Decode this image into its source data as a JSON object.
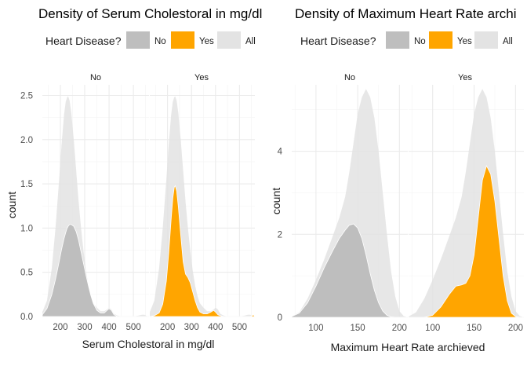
{
  "colors": {
    "No": "#bebebe",
    "Yes": "#ffa500",
    "All": "#e3e3e3"
  },
  "chart_data": [
    {
      "type": "area",
      "title": "Density of Serum Cholestoral in mg/dl",
      "xlabel": "Serum Cholestoral in mg/dl",
      "ylabel": "count",
      "legend": {
        "title": "Heart Disease?",
        "entries": [
          "No",
          "Yes",
          "All"
        ],
        "position": "top"
      },
      "panels": [
        "No",
        "Yes"
      ],
      "xlim": [
        126,
        564
      ],
      "ylim": [
        0,
        2.62
      ],
      "xticks": [
        200,
        300,
        400,
        500
      ],
      "yticks": [
        0.0,
        0.5,
        1.0,
        1.5,
        2.0,
        2.5
      ],
      "ytick_labels": [
        "0.0",
        "0.5",
        "1.0",
        "1.5",
        "2.0",
        "2.5"
      ],
      "grid": true,
      "x": [
        126,
        145,
        165,
        180,
        195,
        205,
        215,
        222,
        228,
        232,
        238,
        245,
        255,
        265,
        275,
        285,
        295,
        305,
        315,
        325,
        335,
        350,
        365,
        380,
        392,
        400,
        410,
        420,
        435,
        450,
        470,
        500,
        520,
        535,
        545,
        552,
        558,
        564
      ],
      "series": [
        {
          "name": "No",
          "panel": "No",
          "values": [
            0.02,
            0.09,
            0.25,
            0.42,
            0.62,
            0.76,
            0.88,
            0.95,
            1.0,
            1.02,
            1.04,
            1.04,
            1.02,
            0.96,
            0.86,
            0.73,
            0.6,
            0.47,
            0.35,
            0.24,
            0.15,
            0.07,
            0.04,
            0.04,
            0.07,
            0.09,
            0.07,
            0.02,
            0.0,
            0.0,
            0.0,
            0.0,
            0.0,
            0.0,
            0.0,
            0.0,
            0.0,
            0.0
          ]
        },
        {
          "name": "All",
          "panel": "No",
          "values": [
            0.05,
            0.18,
            0.55,
            1.0,
            1.55,
            1.95,
            2.28,
            2.43,
            2.48,
            2.49,
            2.44,
            2.3,
            2.0,
            1.65,
            1.3,
            1.0,
            0.74,
            0.52,
            0.35,
            0.23,
            0.15,
            0.1,
            0.06,
            0.06,
            0.08,
            0.1,
            0.08,
            0.03,
            0.01,
            0.0,
            0.0,
            0.0,
            0.01,
            0.02,
            0.02,
            0.01,
            0.0,
            0.0
          ]
        },
        {
          "name": "Yes",
          "panel": "Yes",
          "values": [
            0.0,
            0.01,
            0.04,
            0.14,
            0.4,
            0.72,
            1.1,
            1.34,
            1.46,
            1.48,
            1.42,
            1.24,
            0.92,
            0.62,
            0.48,
            0.44,
            0.38,
            0.28,
            0.18,
            0.1,
            0.05,
            0.03,
            0.03,
            0.05,
            0.07,
            0.05,
            0.02,
            0.01,
            0.0,
            0.0,
            0.0,
            0.0,
            0.0,
            0.0,
            0.0,
            0.01,
            0.02,
            0.0
          ]
        },
        {
          "name": "All",
          "panel": "Yes",
          "values": [
            0.05,
            0.18,
            0.55,
            1.0,
            1.55,
            1.95,
            2.28,
            2.43,
            2.48,
            2.49,
            2.44,
            2.3,
            2.0,
            1.65,
            1.3,
            1.0,
            0.74,
            0.52,
            0.35,
            0.23,
            0.15,
            0.1,
            0.06,
            0.06,
            0.08,
            0.1,
            0.08,
            0.03,
            0.01,
            0.0,
            0.0,
            0.0,
            0.01,
            0.02,
            0.02,
            0.01,
            0.0,
            0.0
          ]
        }
      ]
    },
    {
      "type": "area",
      "title": "Density of Maximum Heart Rate archi",
      "xlabel": "Maximum Heart Rate archieved",
      "ylabel": "count",
      "legend": {
        "title": "Heart Disease?",
        "entries": [
          "No",
          "Yes",
          "All"
        ],
        "position": "top"
      },
      "panels": [
        "No",
        "Yes"
      ],
      "xlim": [
        71,
        210
      ],
      "ylim": [
        0,
        5.6
      ],
      "xticks": [
        100,
        150,
        200
      ],
      "yticks": [
        0,
        2,
        4
      ],
      "ytick_labels": [
        "0",
        "2",
        "4"
      ],
      "grid": true,
      "x": [
        71,
        80,
        90,
        100,
        110,
        120,
        128,
        135,
        140,
        145,
        150,
        155,
        160,
        165,
        170,
        175,
        180,
        185,
        190,
        195,
        200,
        205,
        210
      ],
      "series": [
        {
          "name": "No",
          "panel": "No",
          "values": [
            0.02,
            0.1,
            0.35,
            0.75,
            1.2,
            1.6,
            1.9,
            2.1,
            2.22,
            2.25,
            2.15,
            1.9,
            1.5,
            1.05,
            0.65,
            0.35,
            0.15,
            0.05,
            0.01,
            0.0,
            0.0,
            0.0,
            0.0
          ]
        },
        {
          "name": "All",
          "panel": "No",
          "values": [
            0.02,
            0.12,
            0.45,
            0.9,
            1.4,
            1.95,
            2.4,
            2.9,
            3.5,
            4.2,
            4.9,
            5.3,
            5.5,
            5.3,
            4.8,
            4.0,
            3.0,
            2.0,
            1.1,
            0.5,
            0.15,
            0.03,
            0.0
          ]
        },
        {
          "name": "Yes",
          "panel": "Yes",
          "values": [
            0.0,
            0.0,
            0.0,
            0.05,
            0.25,
            0.55,
            0.75,
            0.78,
            0.82,
            1.0,
            1.5,
            2.4,
            3.3,
            3.65,
            3.45,
            2.8,
            1.9,
            1.0,
            0.4,
            0.1,
            0.02,
            0.0,
            0.0
          ]
        },
        {
          "name": "All",
          "panel": "Yes",
          "values": [
            0.02,
            0.12,
            0.45,
            0.9,
            1.4,
            1.95,
            2.4,
            2.9,
            3.5,
            4.2,
            4.9,
            5.3,
            5.5,
            5.3,
            4.8,
            4.0,
            3.0,
            2.0,
            1.1,
            0.5,
            0.15,
            0.03,
            0.0
          ]
        }
      ]
    }
  ]
}
